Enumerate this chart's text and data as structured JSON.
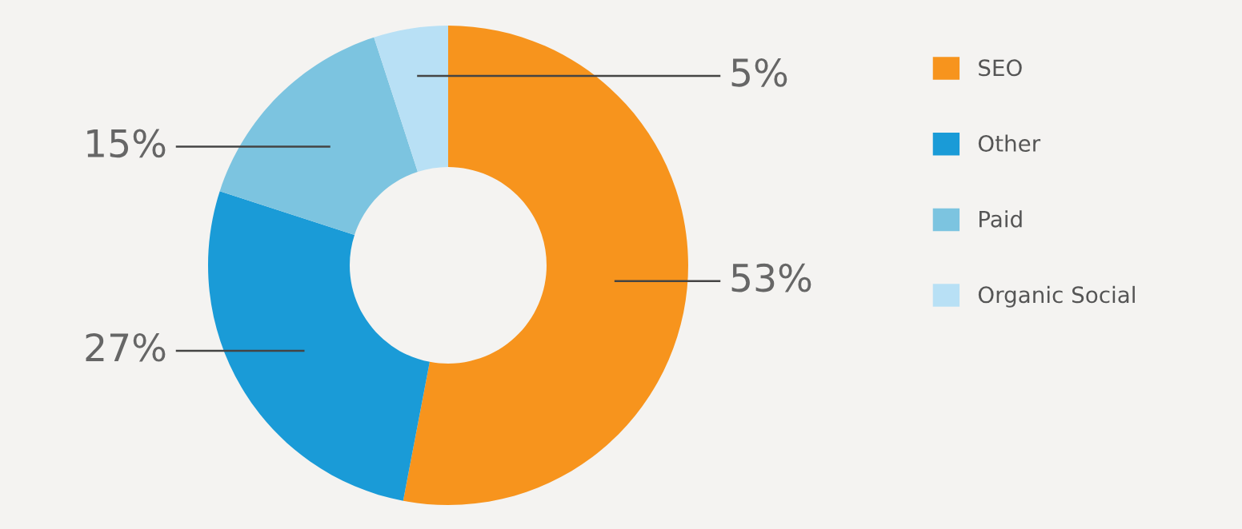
{
  "chart_data": {
    "type": "donut",
    "categories": [
      "SEO",
      "Other",
      "Paid",
      "Organic Social"
    ],
    "values": [
      53,
      27,
      15,
      5
    ],
    "colors": [
      "#f7941d",
      "#1a9bd7",
      "#7cc4e0",
      "#b8e0f5"
    ],
    "value_labels": [
      "53%",
      "27%",
      "15%",
      "5%"
    ],
    "legend": "right"
  }
}
